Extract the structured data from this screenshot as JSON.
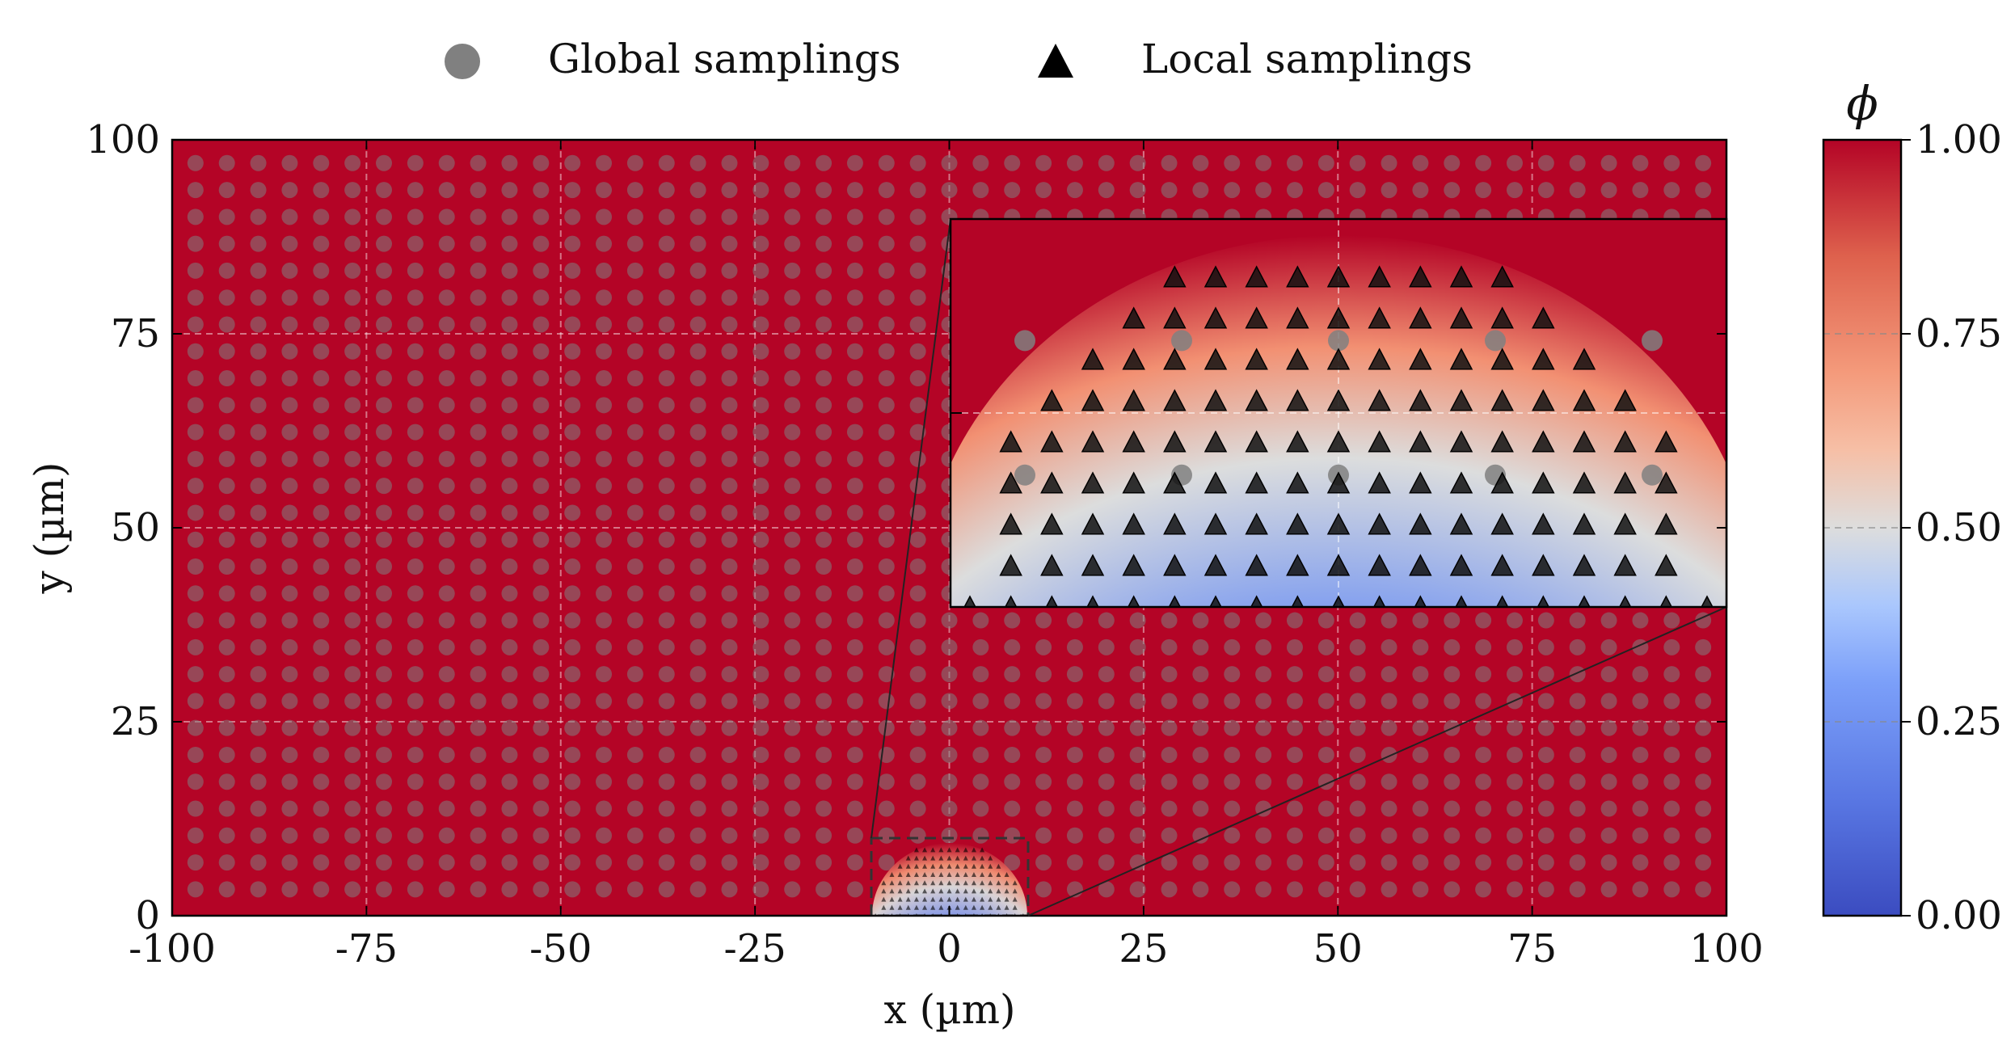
{
  "chart_data": {
    "type": "heatmap",
    "title": "",
    "xlabel": "x (µm)",
    "ylabel": "y (µm)",
    "xlim": [
      -100,
      100
    ],
    "ylim": [
      0,
      100
    ],
    "x_ticks": [
      "-100",
      "-75",
      "-50",
      "-25",
      "0",
      "25",
      "50",
      "75",
      "100"
    ],
    "y_ticks": [
      "0",
      "25",
      "50",
      "75",
      "100"
    ],
    "grid": true,
    "legend": {
      "placement": "top-center",
      "entries": [
        {
          "label": "Global samplings",
          "marker": "circle",
          "color": "#808080"
        },
        {
          "label": "Local samplings",
          "marker": "triangle",
          "color": "#000000"
        }
      ]
    },
    "colorbar": {
      "label": "ϕ",
      "range": [
        0.0,
        1.0
      ],
      "ticks": [
        "0.00",
        "0.25",
        "0.50",
        "0.75",
        "1.00"
      ],
      "colormap": "coolwarm",
      "low_color": "#3b4cc0",
      "mid_color": "#dddddd",
      "high_color": "#b40426"
    },
    "field": {
      "background_phi": 1.0,
      "droplet_center": [
        0,
        0
      ],
      "droplet_radius": 8,
      "droplet_min_phi": 0.0
    },
    "global_samplings": {
      "x_range": [
        -97,
        97
      ],
      "y_range": [
        3.4,
        97
      ],
      "count_x": 49,
      "count_y": 28
    },
    "local_samplings": {
      "x_range": [
        -9.5,
        9.5
      ],
      "y_range": [
        0,
        8.5
      ],
      "count_x": 19,
      "count_y": 9
    },
    "inset": {
      "zoom_xlim": [
        -10,
        10
      ],
      "zoom_ylim": [
        0,
        10
      ],
      "placement": "upper-right"
    }
  }
}
